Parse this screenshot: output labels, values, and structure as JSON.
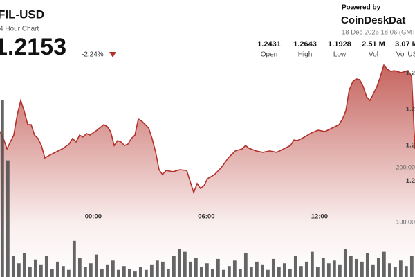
{
  "header": {
    "title": "FIL-USD",
    "subtitle": "4 Hour Chart",
    "price": 1.2153,
    "change": "-2.24%",
    "powered_by": "Powered by",
    "brand": "CoinDeskDat",
    "timestamp": "18 Dec 2025 18:06 (GMT",
    "stats": [
      {
        "value": 1.2431,
        "label": "Open"
      },
      {
        "value": 1.2643,
        "label": "High"
      },
      {
        "value": 1.1928,
        "label": "Low"
      },
      {
        "value": "2.51 M",
        "label": "Vol"
      },
      {
        "value": "3.07 M",
        "label": "Vol US"
      }
    ]
  },
  "chart_data": [
    {
      "type": "line",
      "color": "#b3312a",
      "x": [
        -4.95,
        -4.77,
        -4.58,
        -4.4,
        -4.22,
        -4.03,
        -3.85,
        -3.67,
        -3.48,
        -3.3,
        -3.12,
        -2.93,
        -2.75,
        -2.57,
        -2.38,
        -2.01,
        -1.65,
        -1.28,
        -1.1,
        -0.91,
        -0.73,
        -0.55,
        -0.36,
        -0.18,
        0.19,
        0.56,
        0.74,
        0.92,
        1.11,
        1.29,
        1.47,
        1.66,
        1.84,
        2.02,
        2.21,
        2.39,
        2.57,
        2.76,
        2.94,
        3.12,
        3.31,
        3.49,
        3.67,
        3.86,
        4.23,
        4.59,
        4.96,
        5.14,
        5.33,
        5.51,
        5.69,
        5.88,
        6.06,
        6.43,
        6.79,
        7.16,
        7.53,
        7.9,
        8.08,
        8.26,
        8.63,
        9.0,
        9.36,
        9.73,
        10.1,
        10.46,
        10.65,
        10.83,
        11.2,
        11.57,
        11.93,
        12.3,
        12.67,
        13.04,
        13.22,
        13.4,
        13.58,
        13.77,
        13.95,
        14.13,
        14.32,
        14.5,
        14.68,
        14.87,
        15.05,
        15.24,
        15.42,
        15.6,
        15.79,
        15.97,
        16.34,
        16.7,
        16.89,
        17.07
      ],
      "values": [
        1.2277,
        1.2238,
        1.218,
        1.2219,
        1.2257,
        1.2373,
        1.245,
        1.2392,
        1.2315,
        1.2315,
        1.2257,
        1.2238,
        1.2199,
        1.213,
        1.2142,
        1.2161,
        1.218,
        1.2207,
        1.2238,
        1.2219,
        1.2257,
        1.2246,
        1.2265,
        1.2257,
        1.2284,
        1.2315,
        1.2304,
        1.2277,
        1.2199,
        1.2226,
        1.2219,
        1.2199,
        1.2207,
        1.2238,
        1.2257,
        1.2346,
        1.2335,
        1.2315,
        1.2296,
        1.2238,
        1.2161,
        1.2064,
        1.2037,
        1.206,
        1.2053,
        1.2064,
        1.206,
        1.1999,
        1.1937,
        1.1987,
        1.196,
        1.1976,
        1.2014,
        1.2037,
        1.2076,
        1.213,
        1.2169,
        1.218,
        1.2199,
        1.2184,
        1.2169,
        1.2161,
        1.2169,
        1.2161,
        1.218,
        1.2199,
        1.223,
        1.2226,
        1.2246,
        1.2269,
        1.2284,
        1.2277,
        1.2296,
        1.2315,
        1.2346,
        1.2392,
        1.2508,
        1.2555,
        1.257,
        1.2566,
        1.2528,
        1.247,
        1.245,
        1.2489,
        1.2528,
        1.2585,
        1.2647,
        1.2624,
        1.2612,
        1.2616,
        1.2605,
        1.2616,
        1.2585,
        1.218
      ],
      "xlim": [
        -4.95,
        17.07
      ],
      "ylim": [
        1.1466,
        1.301
      ],
      "xticks": [
        {
          "value": 0,
          "label": "00:00"
        },
        {
          "value": 6,
          "label": "06:00"
        },
        {
          "value": 12,
          "label": "12:00"
        }
      ],
      "yticks": [
        {
          "value": 1.26,
          "label": "1.2"
        },
        {
          "value": 1.24,
          "label": "1.2"
        },
        {
          "value": 1.22,
          "label": "1.2"
        },
        {
          "value": 1.2,
          "label": "1.2"
        }
      ]
    },
    {
      "type": "bar",
      "color": "#4a4a4a",
      "categories": [
        null,
        null,
        null,
        null,
        null,
        null,
        null,
        null,
        null,
        null,
        null,
        null,
        null,
        null,
        null,
        null,
        null,
        null,
        null,
        null,
        null,
        null,
        null,
        null,
        null,
        null,
        null,
        null,
        null,
        null,
        null,
        null,
        null,
        null,
        null,
        null,
        null,
        null,
        null,
        null,
        null,
        null,
        null,
        null,
        null,
        null,
        null,
        null,
        null,
        null,
        null,
        null,
        null,
        null,
        null,
        null,
        null,
        null,
        null,
        null,
        null,
        null,
        null,
        null,
        null,
        null,
        null,
        null,
        null,
        null,
        null,
        null,
        null,
        null,
        null
      ],
      "values": [
        323000,
        213000,
        38000,
        25000,
        44000,
        19000,
        32000,
        23000,
        38000,
        15000,
        28000,
        20000,
        13000,
        66000,
        35000,
        18000,
        25000,
        41000,
        15000,
        23000,
        30000,
        13000,
        20000,
        15000,
        10000,
        18000,
        13000,
        23000,
        30000,
        28000,
        15000,
        38000,
        51000,
        46000,
        28000,
        35000,
        18000,
        25000,
        15000,
        33000,
        13000,
        20000,
        30000,
        15000,
        43000,
        18000,
        28000,
        23000,
        13000,
        33000,
        18000,
        25000,
        15000,
        38000,
        20000,
        28000,
        46000,
        18000,
        35000,
        25000,
        30000,
        23000,
        51000,
        38000,
        33000,
        28000,
        43000,
        23000,
        35000,
        46000,
        25000,
        18000,
        30000,
        20000,
        38000
      ],
      "ylim": [
        0,
        506000
      ],
      "yticks": [
        {
          "value": 100000,
          "label": "100,00"
        },
        {
          "value": 200000,
          "label": "200,00"
        }
      ]
    }
  ]
}
